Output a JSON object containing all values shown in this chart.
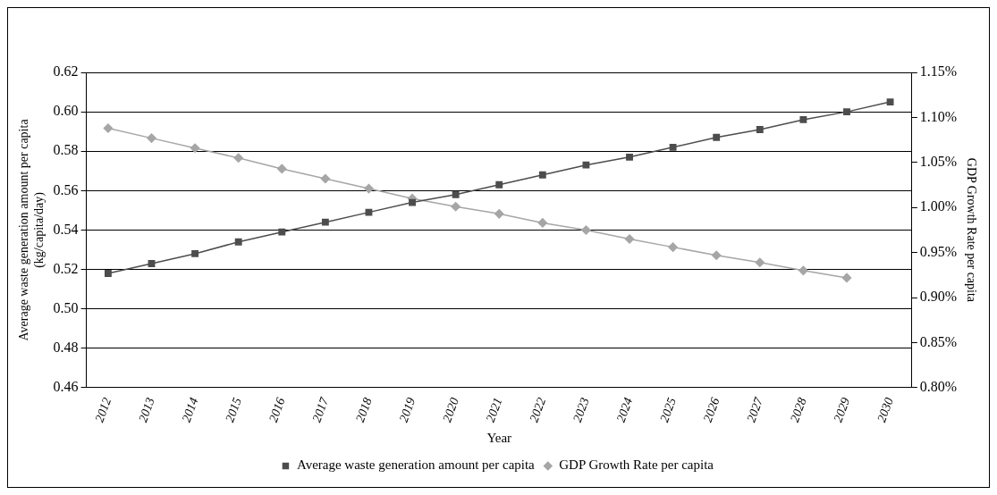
{
  "chart_data": {
    "type": "line",
    "xlabel": "Year",
    "ylabel": "Average waste generation amount per capita\n(kg/capita/day)",
    "y2label": "GDP Growth Rate per capita",
    "categories": [
      "2012",
      "2013",
      "2014",
      "2015",
      "2016",
      "2017",
      "2018",
      "2019",
      "2020",
      "2021",
      "2022",
      "2023",
      "2024",
      "2025",
      "2026",
      "2027",
      "2028",
      "2029",
      "2030"
    ],
    "series": [
      {
        "name": "Average waste generation amount per capita",
        "color": "#4d4d4d",
        "marker": "square",
        "values": [
          0.518,
          0.523,
          0.528,
          0.534,
          0.539,
          0.544,
          0.549,
          0.554,
          0.558,
          0.563,
          0.568,
          0.573,
          0.577,
          0.582,
          0.587,
          0.591,
          0.596,
          0.6,
          0.605
        ]
      },
      {
        "name": "GDP Growth Rate per capita",
        "color": "#a6a6a6",
        "marker": "diamond",
        "axis": "y2",
        "values": [
          1.088,
          1.077,
          1.066,
          1.055,
          1.043,
          1.032,
          1.021,
          1.01,
          1.001,
          0.993,
          0.983,
          0.975,
          0.965,
          0.956,
          0.947,
          0.939,
          0.93,
          0.922,
          null
        ]
      }
    ],
    "ylim": [
      0.46,
      0.62
    ],
    "yticks": [
      {
        "value": 0.46,
        "label": "0.46"
      },
      {
        "value": 0.48,
        "label": "0.48"
      },
      {
        "value": 0.5,
        "label": "0.50"
      },
      {
        "value": 0.52,
        "label": "0.52"
      },
      {
        "value": 0.54,
        "label": "0.54"
      },
      {
        "value": 0.56,
        "label": "0.56"
      },
      {
        "value": 0.58,
        "label": "0.58"
      },
      {
        "value": 0.6,
        "label": "0.60"
      },
      {
        "value": 0.62,
        "label": "0.62"
      }
    ],
    "y2lim": [
      0.8,
      1.15
    ],
    "y2ticks": [
      {
        "value": 0.8,
        "label": "0.80%"
      },
      {
        "value": 0.85,
        "label": "0.85%"
      },
      {
        "value": 0.9,
        "label": "0.90%"
      },
      {
        "value": 0.95,
        "label": "0.95%"
      },
      {
        "value": 1.0,
        "label": "1.00%"
      },
      {
        "value": 1.05,
        "label": "1.05%"
      },
      {
        "value": 1.1,
        "label": "1.10%"
      },
      {
        "value": 1.15,
        "label": "1.15%"
      }
    ],
    "grid": "y",
    "legend": "bottom",
    "line_style": "solid"
  }
}
